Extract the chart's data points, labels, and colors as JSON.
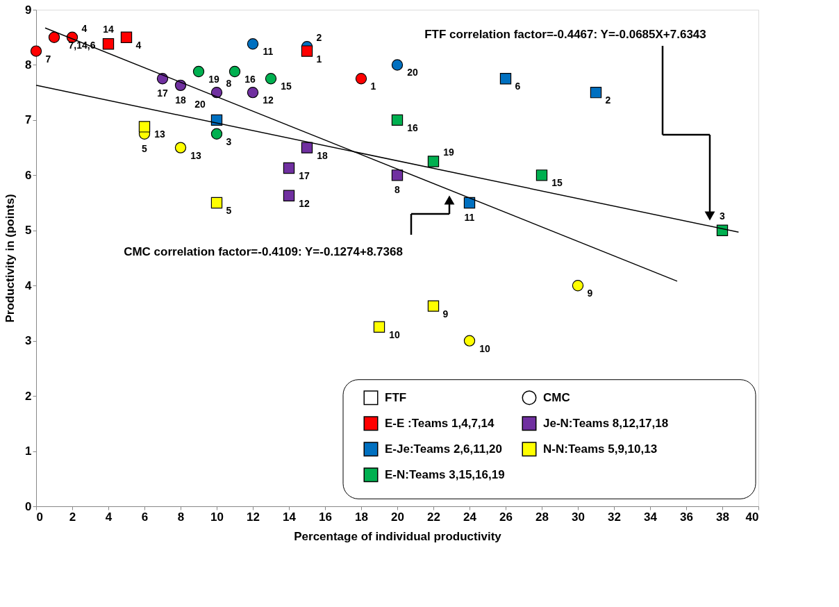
{
  "chart_data": {
    "type": "scatter",
    "xlabel": "Percentage of  individual productivity",
    "ylabel": "Productivity in (points)",
    "xlim": [
      0,
      40
    ],
    "xticks": [
      0,
      2,
      4,
      6,
      8,
      10,
      12,
      14,
      16,
      18,
      20,
      22,
      24,
      26,
      28,
      30,
      32,
      34,
      36,
      38,
      40
    ],
    "ylim": [
      0,
      9
    ],
    "yticks": [
      0,
      1,
      2,
      3,
      4,
      5,
      6,
      7,
      8,
      9
    ],
    "grid": false,
    "legend": "bottom right",
    "series": [
      {
        "name": "E-E :Teams 1,4,7,14",
        "color": "#ff0000",
        "marker": "square",
        "x": [
          4,
          5,
          15
        ],
        "values": [
          8.38,
          8.5,
          8.25
        ]
      },
      {
        "color": "#ff0000",
        "marker": "circle",
        "x": [
          0,
          1,
          2,
          18
        ],
        "values": [
          8.25,
          8.5,
          8.5,
          7.75
        ]
      },
      {
        "name": "E-Je:Teams 2,6,11,20",
        "color": "#0070c0",
        "marker": "square",
        "x": [
          10,
          26,
          31,
          24
        ],
        "values": [
          7.0,
          7.75,
          7.5,
          5.5
        ]
      },
      {
        "color": "#0070c0",
        "marker": "circle",
        "x": [
          12,
          15,
          20
        ],
        "values": [
          8.38,
          8.33,
          8.0
        ]
      },
      {
        "name": "E-N:Teams 3,15,16,19",
        "color": "#00b050",
        "marker": "square",
        "x": [
          20,
          22,
          28,
          38
        ],
        "values": [
          7.0,
          6.25,
          6.0,
          5.0
        ]
      },
      {
        "color": "#00b050",
        "marker": "circle",
        "x": [
          9,
          11,
          13,
          10
        ],
        "values": [
          7.88,
          7.88,
          7.75,
          6.75
        ]
      },
      {
        "name": "Je-N:Teams 8,12,17,18",
        "color": "#7030a0",
        "marker": "square",
        "x": [
          15,
          14,
          14,
          20
        ],
        "values": [
          6.5,
          6.13,
          5.63,
          6.0
        ]
      },
      {
        "color": "#7030a0",
        "marker": "circle",
        "x": [
          7,
          8,
          10,
          12
        ],
        "values": [
          7.75,
          7.63,
          7.5,
          7.5
        ]
      },
      {
        "name": "N-N:Teams 5,9,10,13",
        "color": "#ffff00",
        "marker": "square",
        "x": [
          6,
          10,
          22,
          19
        ],
        "values": [
          6.88,
          5.5,
          3.63,
          3.25
        ]
      },
      {
        "color": "#ffff00",
        "marker": "circle",
        "x": [
          6,
          8,
          30,
          24
        ],
        "values": [
          6.75,
          6.5,
          4.0,
          3.0
        ]
      },
      {
        "type": "line",
        "color": "#000000",
        "marker": "none",
        "line_style": "solid",
        "x": [
          0,
          38.9
        ],
        "values": [
          7.63,
          4.97
        ]
      },
      {
        "type": "line",
        "color": "#000000",
        "marker": "none",
        "line_style": "solid",
        "x": [
          0.5,
          35.5
        ],
        "values": [
          8.67,
          4.08
        ]
      }
    ],
    "annotations": [
      "FTF correlation factor=-0.4467: Y=-0.0685X+7.6343",
      "CMC correlation factor=-0.4109: Y=-0.1274+8.7368",
      "FTF",
      "CMC",
      {
        "text": "14",
        "x": 4,
        "y": 8.38
      },
      {
        "text": "4",
        "x": 5,
        "y": 8.5
      },
      {
        "text": "1",
        "x": 15,
        "y": 8.25
      },
      {
        "text": "7",
        "x": 0,
        "y": 8.25
      },
      {
        "text": "7,14,6",
        "x": 1,
        "y": 8.5
      },
      {
        "text": "4",
        "x": 2,
        "y": 8.5
      },
      {
        "text": "1",
        "x": 18,
        "y": 7.75
      },
      {
        "text": "20",
        "x": 10,
        "y": 7.0
      },
      {
        "text": "6",
        "x": 26,
        "y": 7.75
      },
      {
        "text": "2",
        "x": 31,
        "y": 7.5
      },
      {
        "text": "11",
        "x": 24,
        "y": 5.5
      },
      {
        "text": "11",
        "x": 12,
        "y": 8.38
      },
      {
        "text": "2",
        "x": 15,
        "y": 8.33
      },
      {
        "text": "20",
        "x": 20,
        "y": 8.0
      },
      {
        "text": "16",
        "x": 20,
        "y": 7.0
      },
      {
        "text": "19",
        "x": 22,
        "y": 6.25
      },
      {
        "text": "15",
        "x": 28,
        "y": 6.0
      },
      {
        "text": "3",
        "x": 38,
        "y": 5.0
      },
      {
        "text": "19",
        "x": 9,
        "y": 7.88
      },
      {
        "text": "16",
        "x": 11,
        "y": 7.88
      },
      {
        "text": "15",
        "x": 13,
        "y": 7.75
      },
      {
        "text": "3",
        "x": 10,
        "y": 6.75
      },
      {
        "text": "18",
        "x": 15,
        "y": 6.5
      },
      {
        "text": "17",
        "x": 14,
        "y": 6.13
      },
      {
        "text": "12",
        "x": 14,
        "y": 5.63
      },
      {
        "text": "8",
        "x": 20,
        "y": 6.0
      },
      {
        "text": "17",
        "x": 7,
        "y": 7.75
      },
      {
        "text": "18",
        "x": 8,
        "y": 7.63
      },
      {
        "text": "8",
        "x": 10,
        "y": 7.5
      },
      {
        "text": "12",
        "x": 12,
        "y": 7.5
      },
      {
        "text": "13",
        "x": 6,
        "y": 6.88
      },
      {
        "text": "5",
        "x": 10,
        "y": 5.5
      },
      {
        "text": "9",
        "x": 22,
        "y": 3.63
      },
      {
        "text": "10",
        "x": 19,
        "y": 3.25
      },
      {
        "text": "5",
        "x": 6,
        "y": 6.75
      },
      {
        "text": "13",
        "x": 8,
        "y": 6.5
      },
      {
        "text": "9",
        "x": 30,
        "y": 4.0
      },
      {
        "text": "10",
        "x": 24,
        "y": 3.0
      }
    ]
  }
}
